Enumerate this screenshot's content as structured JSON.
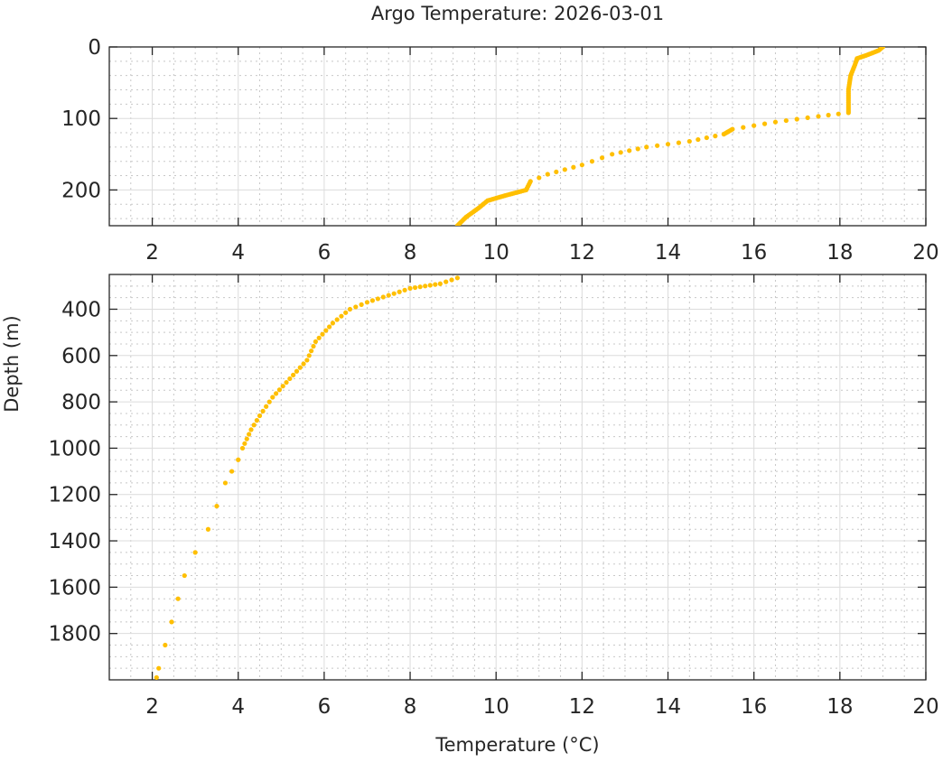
{
  "chart_data": {
    "type": "scatter",
    "title": "Argo Temperature: 2026-03-01",
    "xlabel": "Temperature (°C)",
    "ylabel": "Depth (m)",
    "grid": true,
    "minor_grid": true,
    "marker_color": "#FFBF00",
    "panels": [
      {
        "name": "upper",
        "xlim": [
          1,
          20
        ],
        "ylim": [
          0,
          250
        ],
        "y_reversed": true,
        "xticks": [
          2,
          4,
          6,
          8,
          10,
          12,
          14,
          16,
          18,
          20
        ],
        "yticks": [
          0,
          100,
          200
        ],
        "profile": [
          [
            19.0,
            0
          ],
          [
            18.9,
            5
          ],
          [
            18.6,
            12
          ],
          [
            18.4,
            16
          ],
          [
            18.35,
            25
          ],
          [
            18.25,
            40
          ],
          [
            18.2,
            60
          ],
          [
            18.2,
            80
          ],
          [
            18.2,
            92
          ],
          [
            17.5,
            97
          ],
          [
            16.5,
            105
          ],
          [
            15.5,
            115
          ],
          [
            15.3,
            122
          ],
          [
            14.5,
            132
          ],
          [
            13.5,
            140
          ],
          [
            12.7,
            150
          ],
          [
            12.0,
            165
          ],
          [
            11.2,
            178
          ],
          [
            10.8,
            188
          ],
          [
            10.7,
            200
          ],
          [
            10.2,
            208
          ],
          [
            9.8,
            215
          ],
          [
            9.6,
            225
          ],
          [
            9.3,
            238
          ],
          [
            9.1,
            250
          ]
        ]
      },
      {
        "name": "lower",
        "xlim": [
          1,
          20
        ],
        "ylim": [
          250,
          2000
        ],
        "y_reversed": true,
        "xticks": [
          2,
          4,
          6,
          8,
          10,
          12,
          14,
          16,
          18,
          20
        ],
        "yticks": [
          400,
          600,
          800,
          1000,
          1200,
          1400,
          1600,
          1800
        ],
        "profile": [
          [
            9.1,
            265
          ],
          [
            8.7,
            290
          ],
          [
            8.0,
            310
          ],
          [
            7.5,
            340
          ],
          [
            7.0,
            370
          ],
          [
            6.6,
            400
          ],
          [
            6.2,
            460
          ],
          [
            5.8,
            540
          ],
          [
            5.6,
            620
          ],
          [
            5.2,
            700
          ],
          [
            4.8,
            780
          ],
          [
            4.5,
            860
          ],
          [
            4.3,
            920
          ],
          [
            4.2,
            960
          ],
          [
            4.1,
            1000
          ],
          [
            4.0,
            1050
          ],
          [
            3.85,
            1100
          ],
          [
            3.7,
            1150
          ],
          [
            3.5,
            1250
          ],
          [
            3.3,
            1350
          ],
          [
            3.0,
            1450
          ],
          [
            2.75,
            1550
          ],
          [
            2.6,
            1650
          ],
          [
            2.45,
            1750
          ],
          [
            2.3,
            1850
          ],
          [
            2.15,
            1950
          ],
          [
            2.1,
            1990
          ]
        ]
      }
    ]
  }
}
